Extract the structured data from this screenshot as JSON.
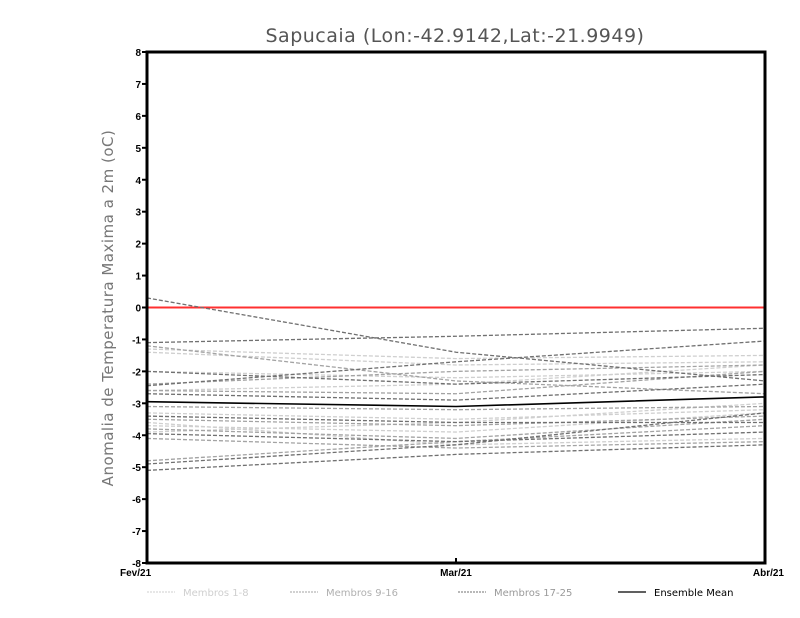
{
  "chart_data": {
    "type": "line",
    "title": "Sapucaia (Lon:-42.9142,Lat:-21.9949)",
    "xlabel": "",
    "ylabel": "Anomalia de Temperatura Maxima a 2m (oC)",
    "categories": [
      "Fev/21",
      "Mar/21",
      "Abr/21"
    ],
    "ylim": [
      -8,
      8
    ],
    "yticks": [
      -8,
      -7,
      -6,
      -5,
      -4,
      -3,
      -2,
      -1,
      0,
      1,
      2,
      3,
      4,
      5,
      6,
      7,
      8
    ],
    "reference_line": {
      "value": 0,
      "color": "#ff3030"
    },
    "groups": [
      {
        "name": "Membros 1-8",
        "color": "#cfcfcf",
        "style": "dashed",
        "series": [
          [
            -1.3,
            -1.6,
            -1.5
          ],
          [
            -2.6,
            -2.4,
            -1.8
          ],
          [
            -3.3,
            -3.5,
            -3.2
          ],
          [
            -3.7,
            -3.9,
            -3.3
          ],
          [
            -3.9,
            -3.6,
            -3.0
          ],
          [
            -2.0,
            -2.2,
            -2.0
          ],
          [
            -3.6,
            -4.3,
            -4.1
          ],
          [
            -1.4,
            -1.8,
            -1.7
          ]
        ]
      },
      {
        "name": "Membros 9-16",
        "color": "#a3a3a3",
        "style": "dashed",
        "series": [
          [
            -1.2,
            -2.3,
            -2.7
          ],
          [
            -2.6,
            -2.7,
            -2.0
          ],
          [
            -3.5,
            -3.7,
            -3.4
          ],
          [
            -3.8,
            -4.1,
            -3.5
          ],
          [
            -4.1,
            -4.4,
            -4.2
          ],
          [
            -2.4,
            -2.0,
            -1.8
          ],
          [
            -3.1,
            -3.2,
            -3.1
          ],
          [
            -4.8,
            -4.2,
            -3.7
          ]
        ]
      },
      {
        "name": "Membros 17-25",
        "color": "#707070",
        "style": "dashed",
        "series": [
          [
            0.3,
            -1.4,
            -2.3
          ],
          [
            -1.1,
            -0.9,
            -0.65
          ],
          [
            -2.45,
            -1.7,
            -1.05
          ],
          [
            -2.0,
            -2.4,
            -2.1
          ],
          [
            -2.7,
            -2.9,
            -2.4
          ],
          [
            -3.4,
            -3.6,
            -3.6
          ],
          [
            -3.95,
            -4.2,
            -3.9
          ],
          [
            -4.9,
            -4.3,
            -3.3
          ],
          [
            -5.1,
            -4.6,
            -4.3
          ]
        ]
      },
      {
        "name": "Ensemble Mean",
        "color": "#000000",
        "style": "solid",
        "series": [
          [
            -2.95,
            -3.1,
            -2.8
          ]
        ]
      }
    ],
    "legend_position": "bottom",
    "grid": false
  }
}
